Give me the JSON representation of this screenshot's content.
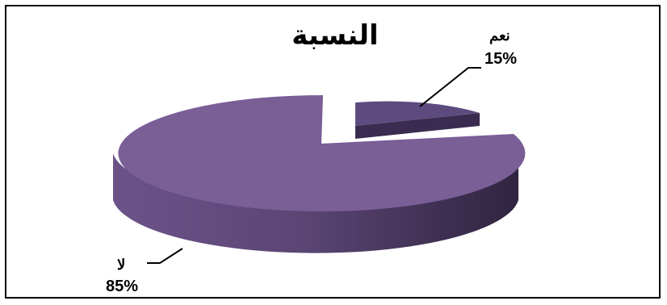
{
  "chart_data": {
    "type": "pie",
    "title": "النسبة",
    "style": "3d-exploded",
    "slices": [
      {
        "label": "نعم",
        "value": 15,
        "value_label": "15%",
        "color": "#5a4a80"
      },
      {
        "label": "لا",
        "value": 85,
        "value_label": "85%",
        "color": "#7a5e96"
      }
    ]
  }
}
